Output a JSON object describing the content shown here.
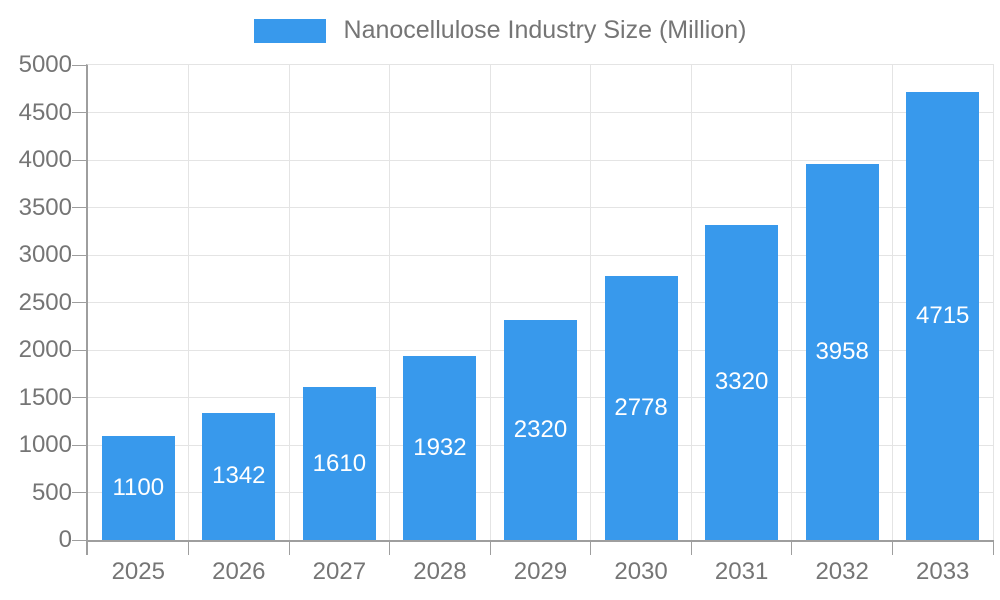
{
  "page": {
    "background": "#ffffff"
  },
  "legend": {
    "label": "Nanocellulose Industry Size (Million)",
    "swatch_color": "#3899EC",
    "position": "top-center"
  },
  "chart_data": {
    "type": "bar",
    "title": "Nanocellulose Industry Size (Million)",
    "series_name": "Nanocellulose Industry Size (Million)",
    "categories": [
      "2025",
      "2026",
      "2027",
      "2028",
      "2029",
      "2030",
      "2031",
      "2032",
      "2033"
    ],
    "values": [
      1100,
      1342,
      1610,
      1932,
      2320,
      2778,
      3320,
      3958,
      4715
    ],
    "xlabel": "",
    "ylabel": "",
    "ylim": [
      0,
      5000
    ],
    "ytick_step": 500,
    "y_tick_labels": [
      "0",
      "500",
      "1000",
      "1500",
      "2000",
      "2500",
      "3000",
      "3500",
      "4000",
      "4500",
      "5000"
    ],
    "grid": true,
    "data_labels": "inside-center",
    "legend_position": "top",
    "colors": {
      "bar": "#3899EC",
      "data_label": "#ffffff",
      "axis_label": "#757575",
      "gridline": "#e4e4e4",
      "axis_line": "#9e9e9e",
      "background": "#ffffff"
    }
  }
}
